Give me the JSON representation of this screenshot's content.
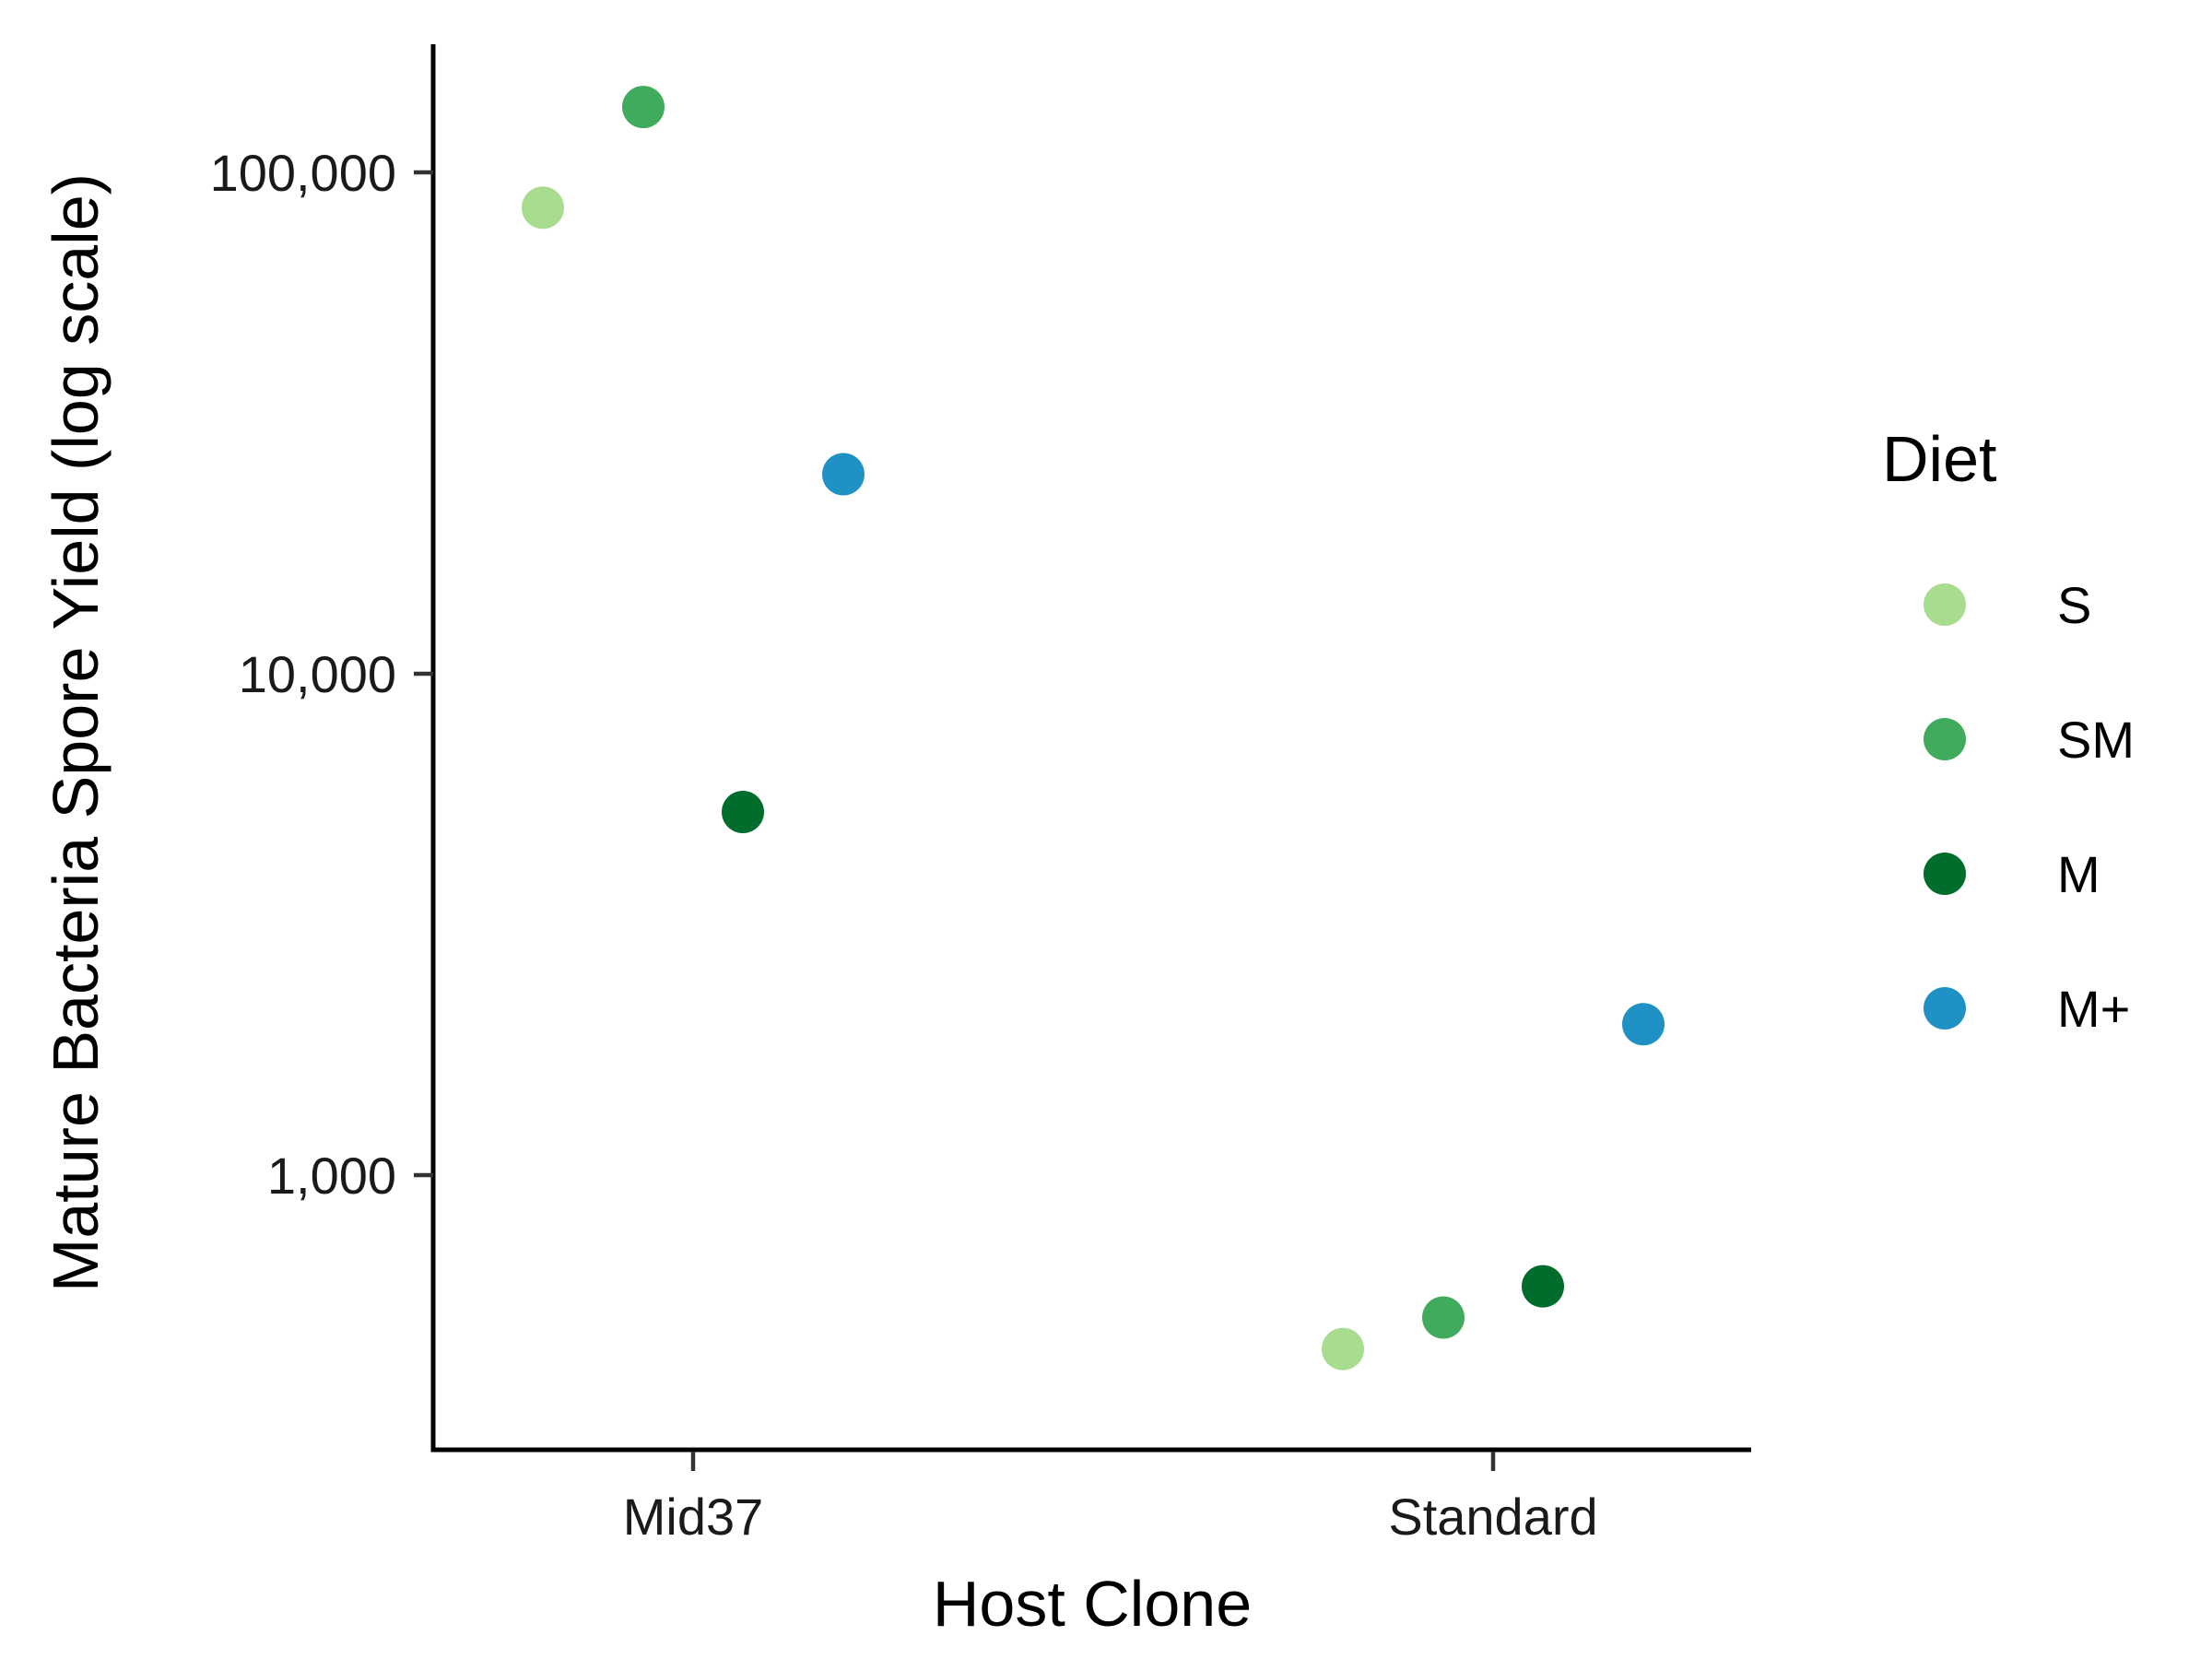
{
  "chart_data": {
    "type": "scatter",
    "title": "",
    "xlabel": "Host Clone",
    "ylabel": "Mature Bacteria Spore Yield (log scale)",
    "y_scale": "log10",
    "ylim": [
      400,
      180000
    ],
    "categories": [
      "Mid37",
      "Standard"
    ],
    "y_ticks": [
      1000,
      10000,
      100000
    ],
    "y_tick_labels": [
      "1,000",
      "10,000",
      "100,000"
    ],
    "grid": false,
    "legend": {
      "title": "Diet",
      "position": "right"
    },
    "series": [
      {
        "name": "S",
        "color": "#a8dc8f",
        "values": [
          85000,
          450
        ]
      },
      {
        "name": "SM",
        "color": "#41ab5d",
        "values": [
          135000,
          520
        ]
      },
      {
        "name": "M",
        "color": "#006d2c",
        "values": [
          5300,
          600
        ]
      },
      {
        "name": "M+",
        "color": "#1f91c4",
        "values": [
          25000,
          2000
        ]
      }
    ]
  }
}
